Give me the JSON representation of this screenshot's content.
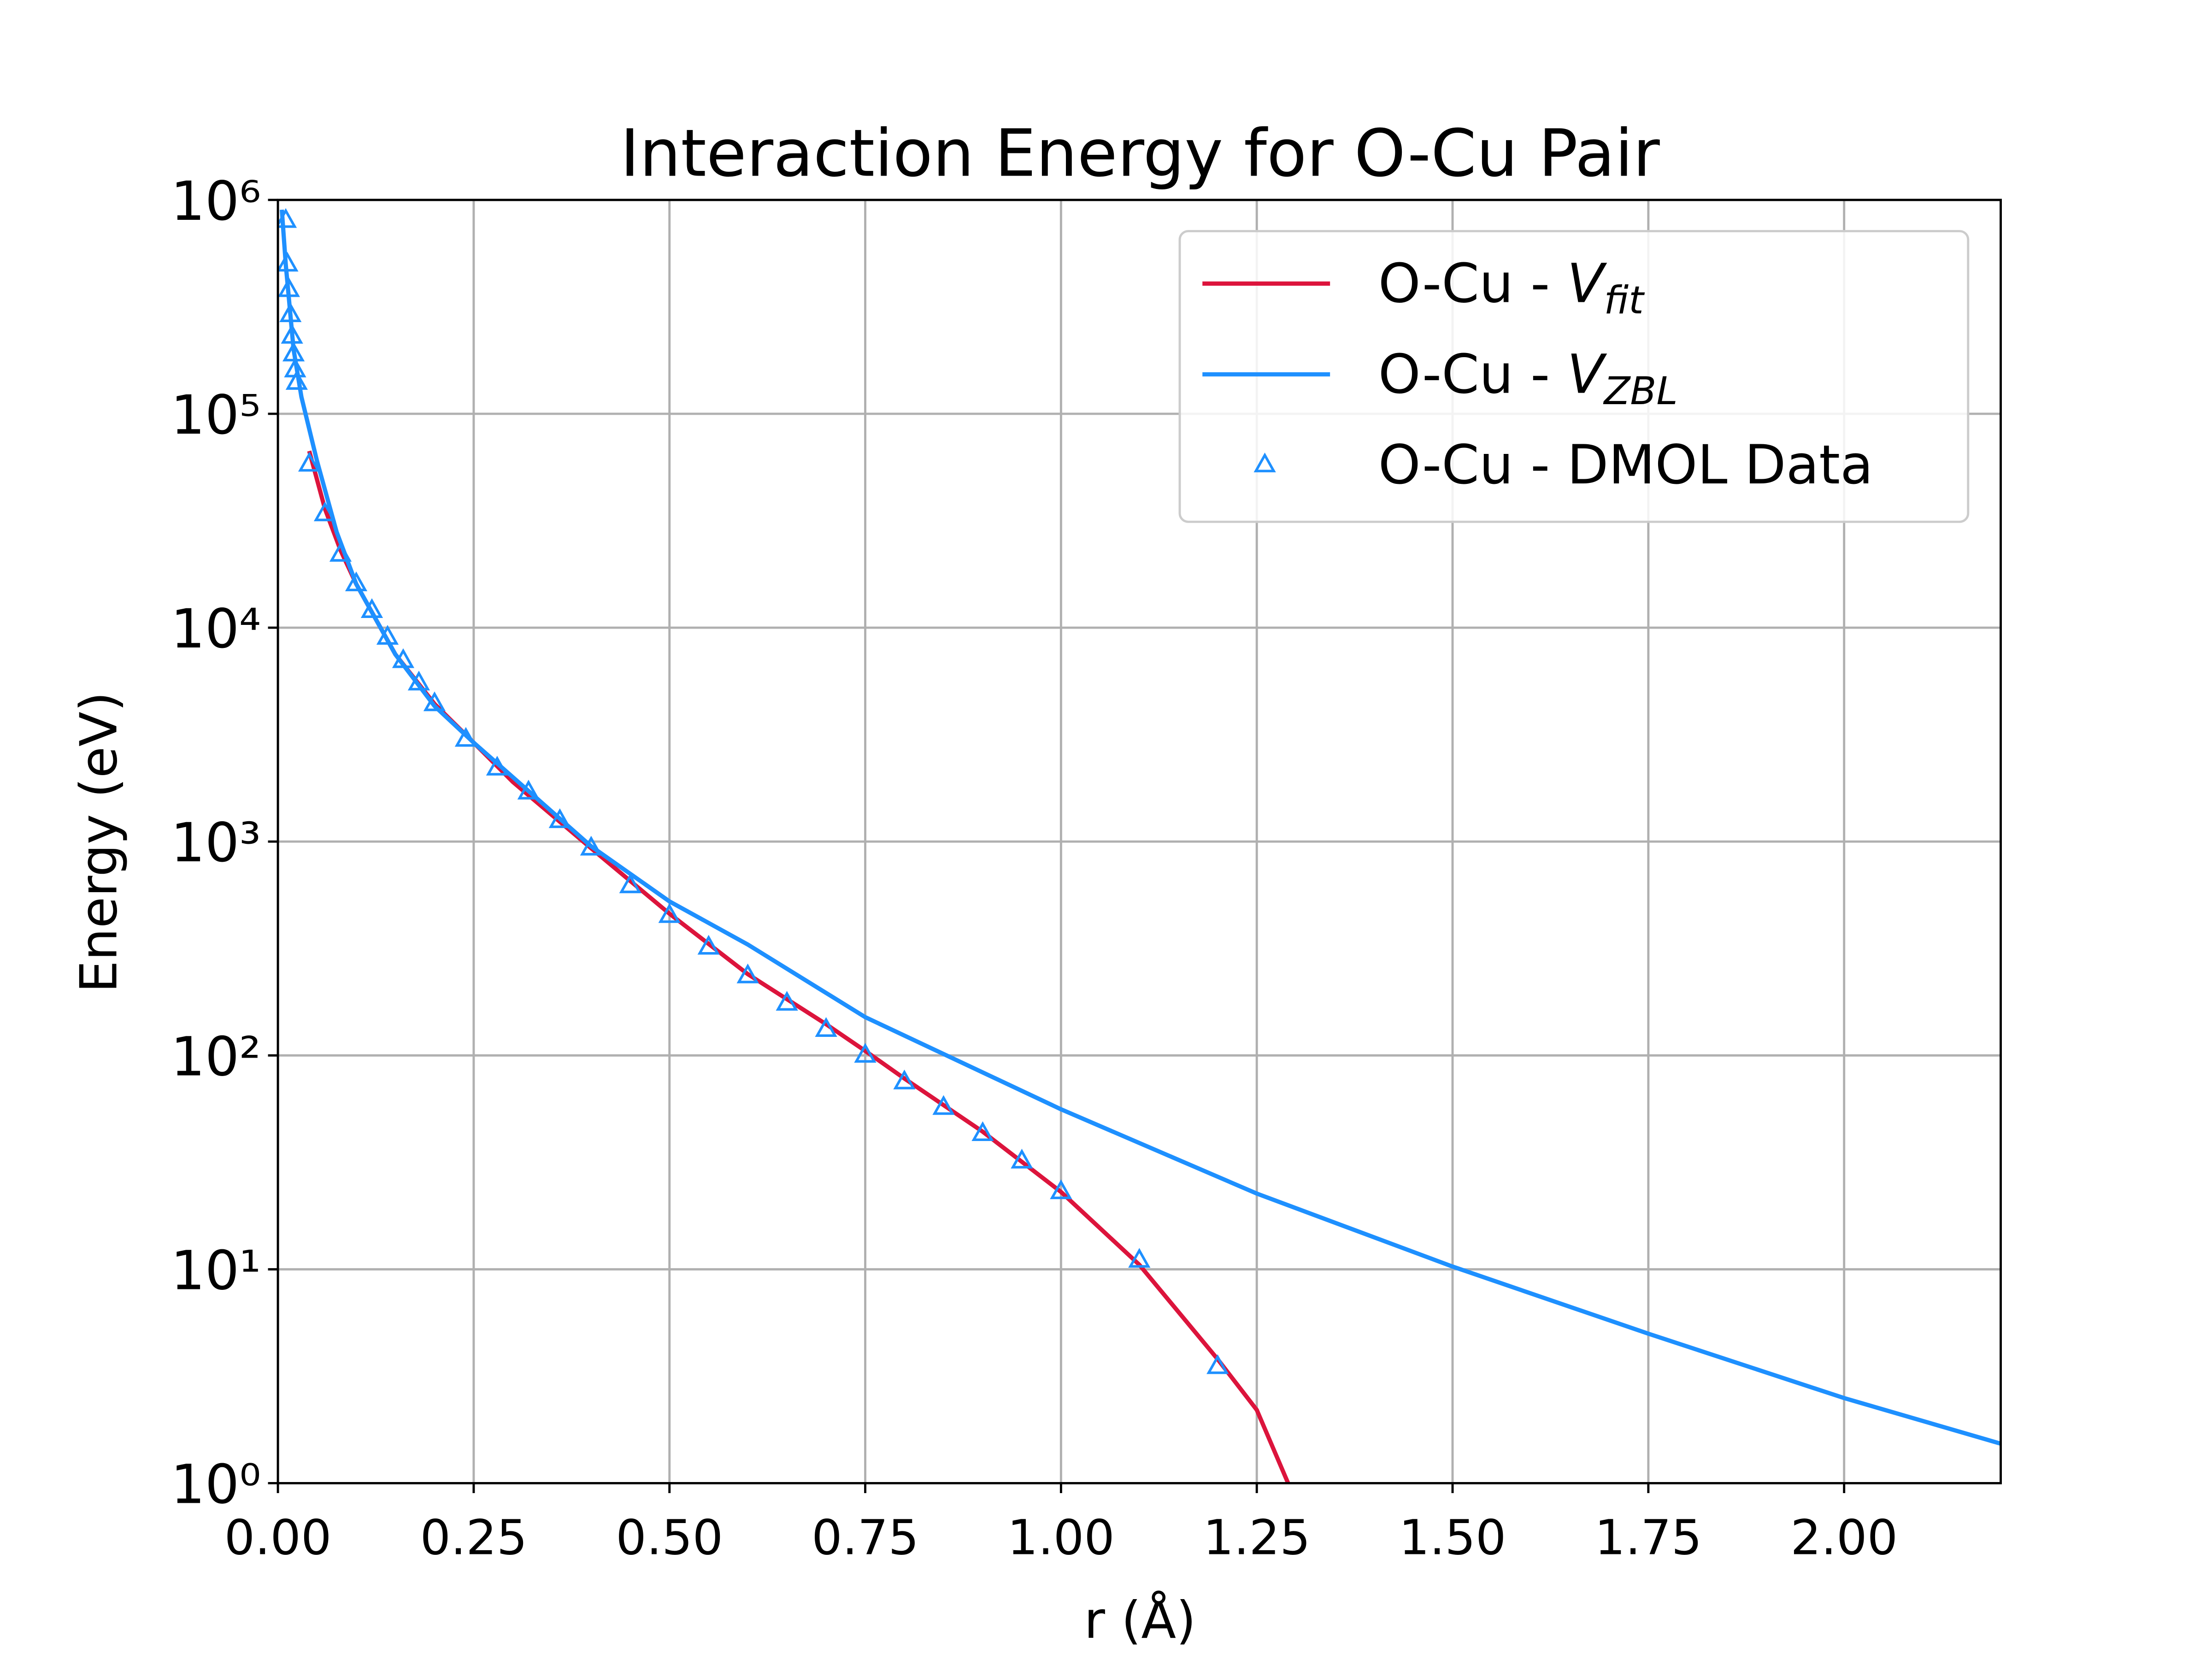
{
  "chart_data": {
    "type": "line",
    "title": "Interaction Energy for O-Cu Pair",
    "x_label": "r (Å)",
    "y_label": "Energy (eV)",
    "xlim": [
      0,
      2.2
    ],
    "ylim": [
      1,
      1000000
    ],
    "yscale": "log",
    "grid": true,
    "legend": "upper right",
    "xticks": [
      {
        "value": 0,
        "label": "0.00"
      },
      {
        "value": 0.25,
        "label": "0.25"
      },
      {
        "value": 0.5,
        "label": "0.50"
      },
      {
        "value": 0.75,
        "label": "0.75"
      },
      {
        "value": 1,
        "label": "1.00"
      },
      {
        "value": 1.25,
        "label": "1.25"
      },
      {
        "value": 1.5,
        "label": "1.50"
      },
      {
        "value": 1.75,
        "label": "1.75"
      },
      {
        "value": 2,
        "label": "2.00"
      }
    ],
    "yticks": [
      {
        "value": 1,
        "label": "10⁰"
      },
      {
        "value": 10,
        "label": "10¹"
      },
      {
        "value": 100,
        "label": "10²"
      },
      {
        "value": 1000,
        "label": "10³"
      },
      {
        "value": 10000,
        "label": "10⁴"
      },
      {
        "value": 100000,
        "label": "10⁵"
      },
      {
        "value": 1000000,
        "label": "10⁶"
      }
    ],
    "series": [
      {
        "name": "O-Cu - Vfit",
        "color": "#dc143c",
        "mode": "line",
        "x": [
          0.04,
          0.06,
          0.08,
          0.1,
          0.15,
          0.2,
          0.25,
          0.3,
          0.4,
          0.5,
          0.6,
          0.7,
          0.75,
          0.8,
          0.9,
          1.0,
          1.1,
          1.2,
          1.25,
          1.29
        ],
        "values": [
          67000,
          36000,
          23000,
          16000,
          7500,
          4400,
          2900,
          1900,
          930,
          460,
          240,
          140,
          105,
          78,
          44,
          23,
          10.5,
          3.8,
          2.2,
          1.0
        ]
      },
      {
        "name": "O-Cu - VZBL",
        "color": "#1e90ff",
        "mode": "line",
        "x": [
          0.005,
          0.01,
          0.02,
          0.03,
          0.05,
          0.075,
          0.1,
          0.15,
          0.2,
          0.25,
          0.3,
          0.4,
          0.5,
          0.6,
          0.75,
          1.0,
          1.25,
          1.5,
          1.75,
          2.0,
          2.2
        ],
        "values": [
          900000,
          500000,
          200000,
          120000,
          60000,
          28000,
          16000,
          7500,
          4300,
          2900,
          2000,
          950,
          525,
          330,
          151,
          56,
          22.6,
          10.3,
          5.0,
          2.5,
          1.53
        ]
      },
      {
        "name": "O-Cu - DMOL Data",
        "color": "#1e90ff",
        "mode": "markers",
        "marker": "triangle",
        "x": [
          0.01,
          0.012,
          0.014,
          0.016,
          0.018,
          0.02,
          0.022,
          0.024,
          0.04,
          0.06,
          0.08,
          0.1,
          0.12,
          0.14,
          0.16,
          0.18,
          0.2,
          0.24,
          0.28,
          0.32,
          0.36,
          0.4,
          0.45,
          0.5,
          0.55,
          0.6,
          0.65,
          0.7,
          0.75,
          0.8,
          0.85,
          0.9,
          0.95,
          1.0,
          1.1,
          1.2
        ],
        "values": [
          800000,
          500000,
          380000,
          290000,
          230000,
          190000,
          160000,
          140000,
          58000,
          34000,
          22000,
          16000,
          12000,
          9000,
          7000,
          5500,
          4400,
          3000,
          2200,
          1700,
          1250,
          930,
          620,
          450,
          320,
          235,
          175,
          132,
          100,
          75,
          57,
          43,
          32,
          23,
          11,
          3.5
        ]
      }
    ]
  }
}
